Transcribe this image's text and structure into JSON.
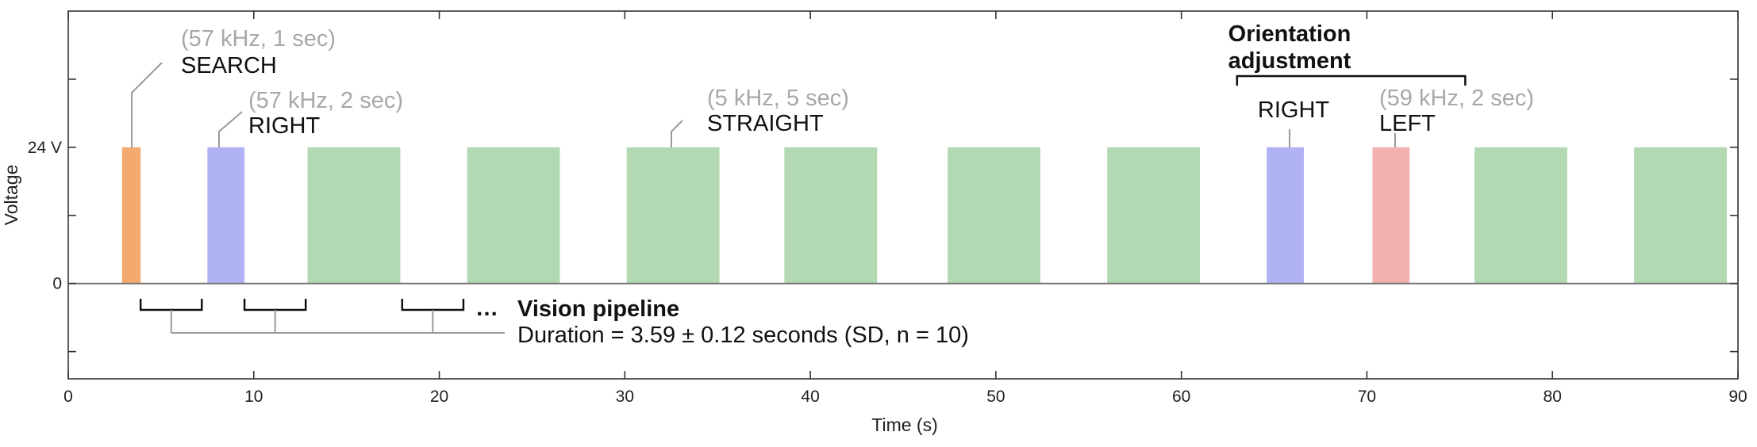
{
  "chart_data": {
    "type": "bar",
    "xlabel": "Time (s)",
    "ylabel": "Voltage",
    "xlim": [
      0,
      90
    ],
    "xticks": [
      0,
      10,
      20,
      30,
      40,
      50,
      60,
      70,
      80,
      90
    ],
    "ylim": [
      -7,
      20
    ],
    "yticks": [
      {
        "value": 10,
        "label": "24 V"
      },
      {
        "value": 0,
        "label": "0"
      }
    ],
    "baseline": 0,
    "pulse_level": 10,
    "grid": false,
    "pulses": [
      {
        "command": "SEARCH",
        "start": 2.9,
        "end": 3.9,
        "color": "#f4aa6e"
      },
      {
        "command": "RIGHT",
        "start": 7.5,
        "end": 9.5,
        "color": "#b1b1f5"
      },
      {
        "command": "STRAIGHT",
        "start": 12.9,
        "end": 17.9,
        "color": "#b3d9b3"
      },
      {
        "command": "STRAIGHT",
        "start": 21.5,
        "end": 26.5,
        "color": "#b3d9b3"
      },
      {
        "command": "STRAIGHT",
        "start": 30.1,
        "end": 35.1,
        "color": "#b3d9b3"
      },
      {
        "command": "STRAIGHT",
        "start": 38.6,
        "end": 43.6,
        "color": "#b3d9b3"
      },
      {
        "command": "STRAIGHT",
        "start": 47.4,
        "end": 52.4,
        "color": "#b3d9b3"
      },
      {
        "command": "STRAIGHT",
        "start": 56.0,
        "end": 61.0,
        "color": "#b3d9b3"
      },
      {
        "command": "RIGHT",
        "start": 64.6,
        "end": 66.6,
        "color": "#b1b1f5"
      },
      {
        "command": "LEFT",
        "start": 70.3,
        "end": 72.3,
        "color": "#f2b0b0"
      },
      {
        "command": "STRAIGHT",
        "start": 75.8,
        "end": 80.8,
        "color": "#b3d9b3"
      },
      {
        "command": "STRAIGHT",
        "start": 84.4,
        "end": 89.4,
        "color": "#b3d9b3"
      }
    ],
    "annotations": {
      "search": {
        "param": "(57 kHz, 1 sec)",
        "label": "SEARCH"
      },
      "right_first": {
        "param": "(57 kHz, 2 sec)",
        "label": "RIGHT"
      },
      "straight": {
        "param": "(5 kHz, 5 sec)",
        "label": "STRAIGHT"
      },
      "orientation_title_line1": "Orientation",
      "orientation_title_line2": "adjustment",
      "right_second": {
        "label": "RIGHT"
      },
      "left": {
        "param": "(59 kHz, 2 sec)",
        "label": "LEFT"
      },
      "vision_title": "Vision pipeline",
      "vision_ellipsis": "…",
      "vision_duration": "Duration = 3.59 ± 0.12 seconds (SD, n = 10)"
    },
    "vision_intervals": [
      {
        "start": 3.9,
        "end": 7.2
      },
      {
        "start": 9.5,
        "end": 12.8
      },
      {
        "start": 18.0,
        "end": 21.3
      }
    ],
    "orientation_bracket": {
      "start": 63.0,
      "end": 75.3
    }
  }
}
